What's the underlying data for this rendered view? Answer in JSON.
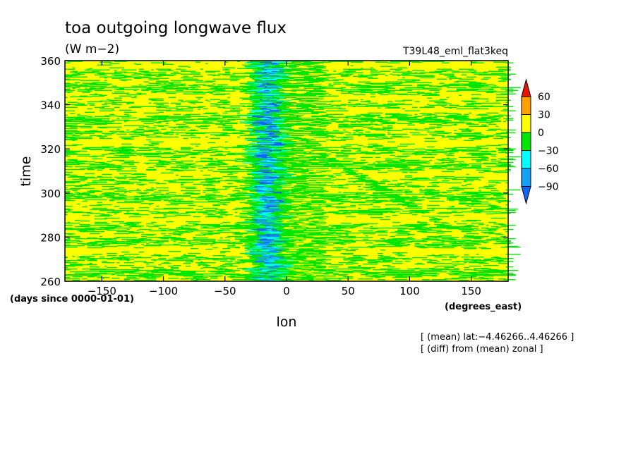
{
  "chart_data": {
    "type": "heatmap",
    "title": "toa outgoing longwave flux",
    "units": "(W m−2)",
    "run_name": "T39L48_eml_flat3keq",
    "xlabel": "lon",
    "ylabel": "time",
    "x_units": "(degrees_east)",
    "y_units": "(days since 0000-01-01)",
    "xlim": [
      -180,
      180
    ],
    "ylim": [
      260,
      360
    ],
    "x_ticks": [
      -150,
      -100,
      -50,
      0,
      50,
      100,
      150
    ],
    "x_tick_labels": [
      "−150",
      "−100",
      "−50",
      "0",
      "50",
      "100",
      "150"
    ],
    "y_ticks": [
      260,
      280,
      300,
      320,
      340,
      360
    ],
    "y_tick_labels": [
      "260",
      "280",
      "300",
      "320",
      "340",
      "360"
    ],
    "notes": [
      "[ (mean) lat:−4.46266..4.46266 ]",
      "[ (diff) from (mean) zonal ]"
    ],
    "colorbar": {
      "levels": [
        -90,
        -60,
        -30,
        0,
        30,
        60
      ],
      "level_labels": [
        "−90",
        "−60",
        "−30",
        "0",
        "30",
        "60"
      ],
      "colors": [
        "#1464f5",
        "#14a0f5",
        "#00ffff",
        "#00e600",
        "#ffff00",
        "#ffa000",
        "#e61400"
      ]
    },
    "features": [
      {
        "kind": "convective-band",
        "lon_center": -15,
        "lon_width": 30,
        "time_range": [
          260,
          360
        ],
        "min_value_range": [
          -90,
          -30
        ]
      },
      {
        "kind": "propagating-signal",
        "start": {
          "lon": 25,
          "time": 318
        },
        "end": {
          "lon": 130,
          "time": 285
        },
        "value_range": [
          -30,
          0
        ]
      }
    ]
  }
}
